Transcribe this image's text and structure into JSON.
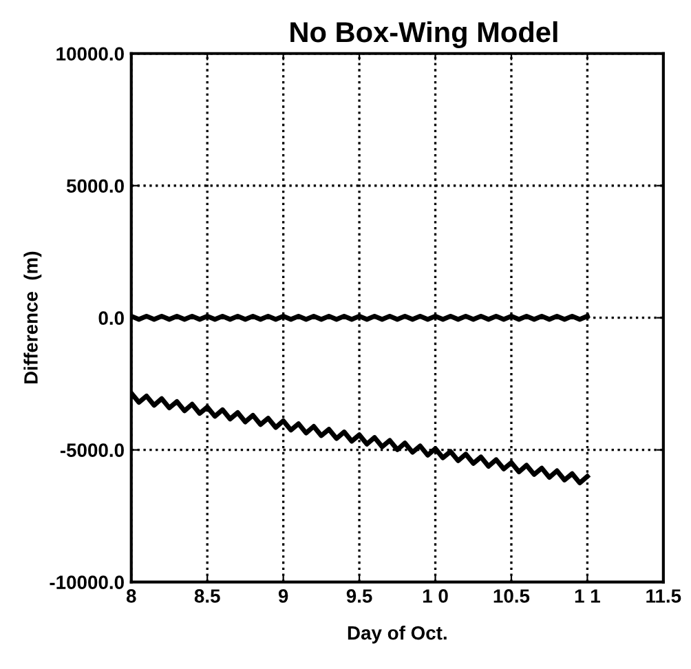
{
  "chart_data": {
    "type": "line",
    "title": "No Box-Wing Model",
    "xlabel": "Day of Oct.",
    "ylabel": "Difference  (m)",
    "x": [
      8,
      8.05,
      8.1,
      8.15,
      8.2,
      8.25,
      8.3,
      8.35,
      8.4,
      8.45,
      8.5,
      8.55,
      8.6,
      8.65,
      8.7,
      8.75,
      8.8,
      8.85,
      8.9,
      8.95,
      9,
      9.05,
      9.1,
      9.15,
      9.2,
      9.25,
      9.3,
      9.35,
      9.4,
      9.45,
      9.5,
      9.55,
      9.6,
      9.65,
      9.7,
      9.75,
      9.8,
      9.85,
      9.9,
      9.95,
      10,
      10.05,
      10.1,
      10.15,
      10.2,
      10.25,
      10.3,
      10.35,
      10.4,
      10.45,
      10.5,
      10.55,
      10.6,
      10.65,
      10.7,
      10.75,
      10.8,
      10.85,
      10.9,
      10.95,
      11
    ],
    "series": [
      {
        "color": "#000000",
        "values": [
          60,
          -60,
          60,
          -60,
          60,
          -60,
          60,
          -60,
          60,
          -60,
          60,
          -60,
          60,
          -60,
          60,
          -60,
          60,
          -60,
          60,
          -60,
          60,
          -60,
          60,
          -60,
          60,
          -60,
          60,
          -60,
          60,
          -60,
          60,
          -60,
          60,
          -60,
          60,
          -60,
          60,
          -60,
          60,
          -60,
          60,
          -60,
          60,
          -60,
          60,
          -60,
          60,
          -60,
          60,
          -60,
          60,
          -60,
          60,
          -60,
          60,
          -60,
          60,
          -60,
          60,
          -60,
          60
        ]
      },
      {
        "color": "#000000",
        "values": [
          -2850,
          -3200,
          -2960,
          -3310,
          -3060,
          -3410,
          -3170,
          -3520,
          -3270,
          -3620,
          -3380,
          -3730,
          -3480,
          -3830,
          -3590,
          -3940,
          -3690,
          -4040,
          -3800,
          -4150,
          -3900,
          -4250,
          -4010,
          -4360,
          -4110,
          -4460,
          -4220,
          -4570,
          -4320,
          -4670,
          -4430,
          -4780,
          -4530,
          -4880,
          -4640,
          -4990,
          -4740,
          -5090,
          -4850,
          -5200,
          -4950,
          -5300,
          -5060,
          -5410,
          -5160,
          -5510,
          -5270,
          -5620,
          -5370,
          -5720,
          -5480,
          -5830,
          -5580,
          -5930,
          -5690,
          -6040,
          -5790,
          -6140,
          -5900,
          -6250,
          -6000
        ]
      }
    ],
    "xlim": [
      8,
      11.5
    ],
    "xticks": [
      8,
      8.5,
      9,
      9.5,
      {
        "value": 10,
        "label": "1 0"
      },
      10.5,
      {
        "value": 11,
        "label": "1 1"
      },
      11.5
    ],
    "ylim": [
      -10000,
      10000
    ],
    "yticks": [
      {
        "value": -10000,
        "label": "-10000.0"
      },
      {
        "value": -5000,
        "label": "-5000.0"
      },
      {
        "value": 0,
        "label": "0.0"
      },
      {
        "value": 5000,
        "label": "5000.0"
      },
      {
        "value": 10000,
        "label": "10000.0"
      }
    ],
    "grid": true,
    "line_style": "solid",
    "marker": "none",
    "legend": false
  }
}
